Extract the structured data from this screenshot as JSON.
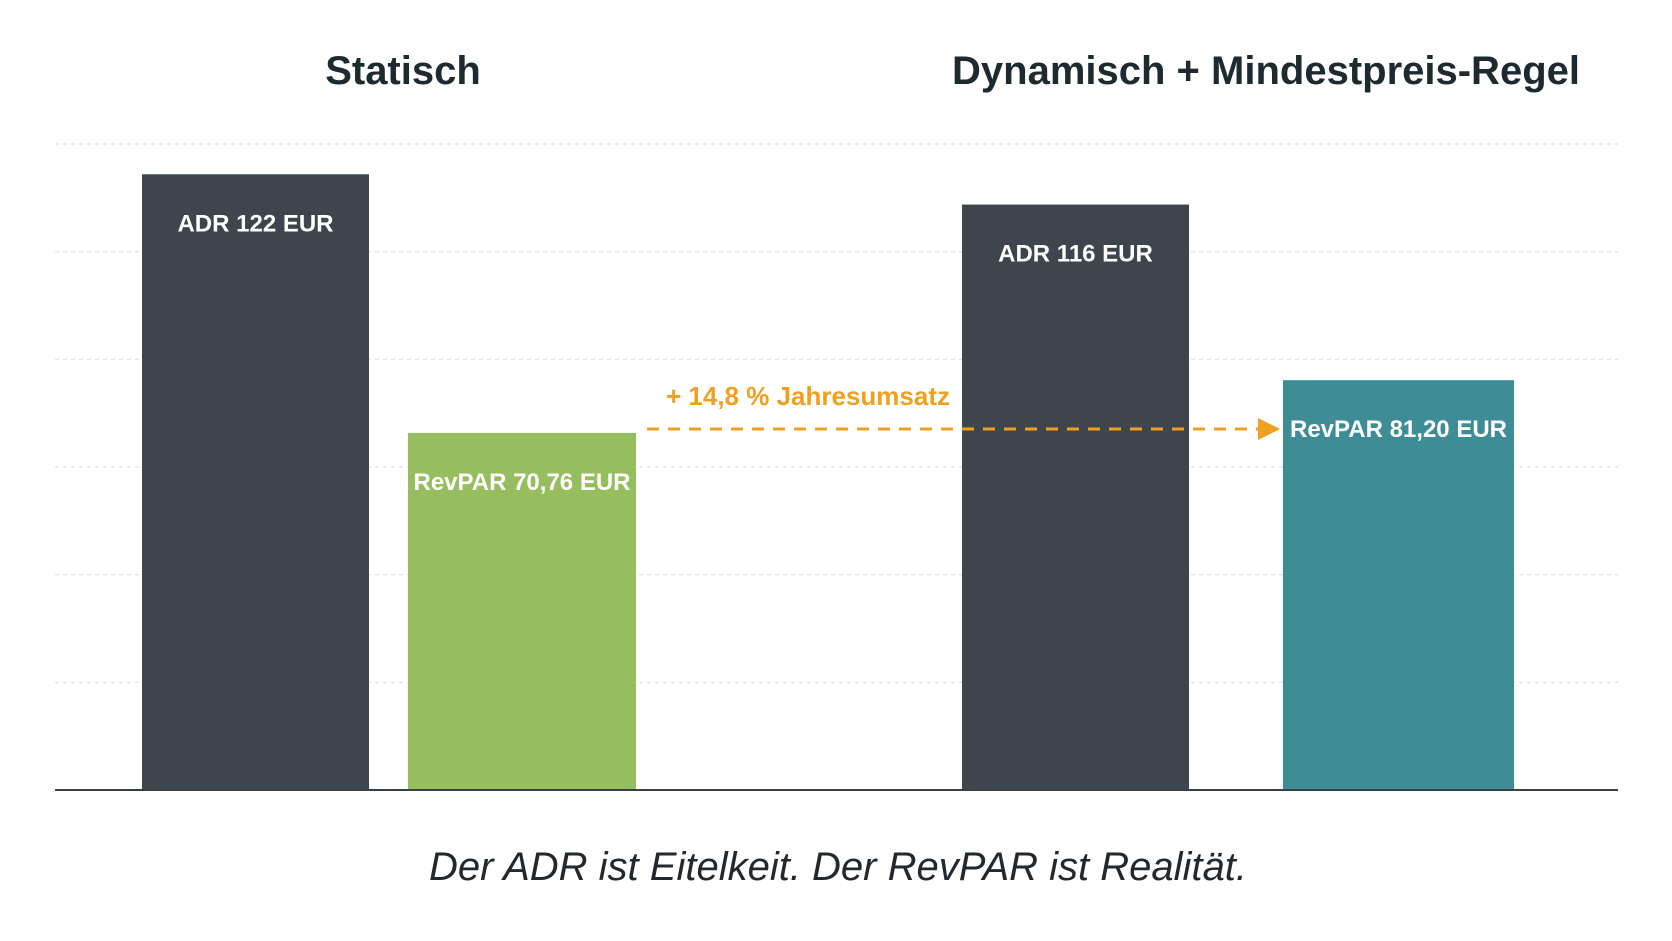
{
  "chart_data": {
    "type": "bar",
    "groups": [
      {
        "title": "Statisch",
        "bars": [
          {
            "metric": "ADR",
            "value": 122,
            "label": "ADR 122 EUR",
            "color": "#3f454c"
          },
          {
            "metric": "RevPAR",
            "value": 70.76,
            "label": "RevPAR 70,76 EUR",
            "color": "#96bd5e"
          }
        ]
      },
      {
        "title": "Dynamisch + Mindestpreis-Regel",
        "bars": [
          {
            "metric": "ADR",
            "value": 116,
            "label": "ADR 116 EUR",
            "color": "#3f454c"
          },
          {
            "metric": "RevPAR",
            "value": 81.2,
            "label": "RevPAR 81,20 EUR",
            "color": "#3d8c96"
          }
        ]
      }
    ],
    "annotation": {
      "text": "+ 14,8 % Jahresumsatz",
      "color": "#f0a020",
      "from": "Statisch RevPAR",
      "to": "Dynamisch + Mindestpreis-Regel RevPAR"
    },
    "caption": "Der ADR ist Eitelkeit. Der RevPAR ist Realität.",
    "ylim": [
      0,
      128
    ],
    "grid": true,
    "axis_color": "#3a3f44",
    "grid_color": "#e3e5e7"
  }
}
